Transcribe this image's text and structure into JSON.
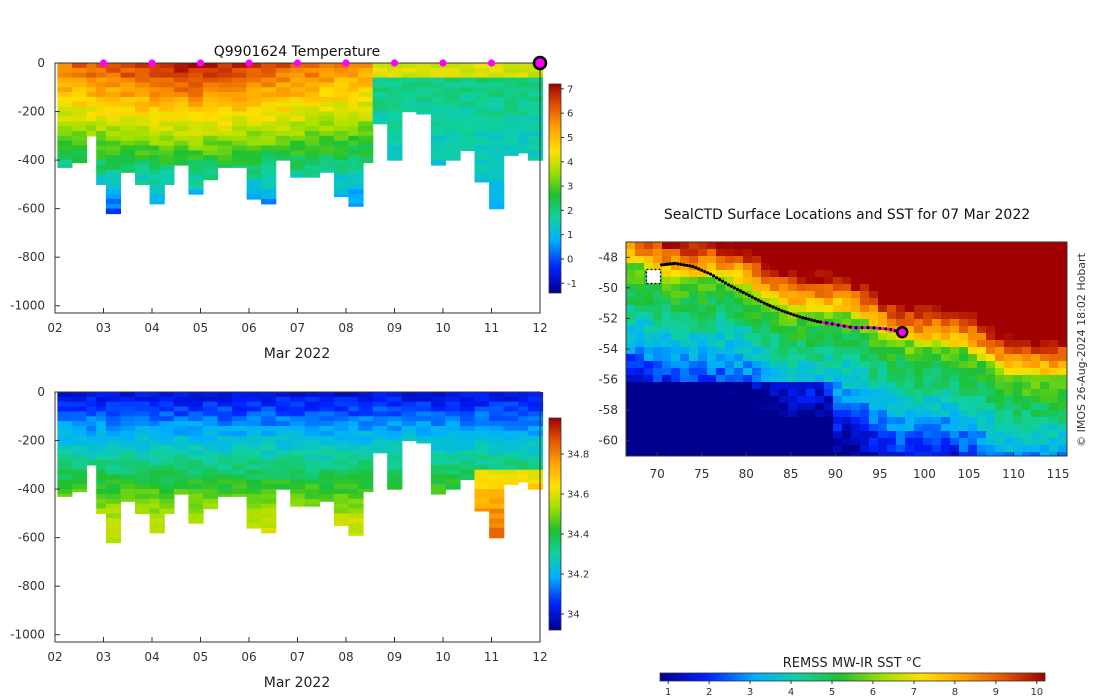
{
  "chart_data": [
    {
      "type": "heatmap",
      "title": "Q9901624  Temperature",
      "xlabel": "Mar 2022",
      "x_ticks": [
        "02",
        "03",
        "04",
        "05",
        "06",
        "07",
        "08",
        "09",
        "10",
        "11",
        "12"
      ],
      "xlim": [
        2,
        12
      ],
      "y_ticks": [
        "0",
        "-200",
        "-400",
        "-600",
        "-800",
        "-1000"
      ],
      "ylim": [
        -1030,
        0
      ],
      "colorbar_ticks": [
        "7",
        "6",
        "5",
        "4",
        "3",
        "2",
        "1",
        "0",
        "-1"
      ],
      "colorbar_range": [
        -1.4,
        7.2
      ],
      "surface_markers_day": [
        3,
        4,
        5,
        6,
        7,
        8,
        9,
        10,
        11
      ],
      "current_marker_day": 12,
      "profiles": [
        {
          "day": 2.2,
          "max_depth": 430
        },
        {
          "day": 2.5,
          "max_depth": 410
        },
        {
          "day": 2.8,
          "max_depth": 300
        },
        {
          "day": 3.0,
          "max_depth": 500
        },
        {
          "day": 3.2,
          "max_depth": 620
        },
        {
          "day": 3.5,
          "max_depth": 450
        },
        {
          "day": 3.8,
          "max_depth": 500
        },
        {
          "day": 4.1,
          "max_depth": 580
        },
        {
          "day": 4.3,
          "max_depth": 500
        },
        {
          "day": 4.6,
          "max_depth": 420
        },
        {
          "day": 4.9,
          "max_depth": 540
        },
        {
          "day": 5.2,
          "max_depth": 480
        },
        {
          "day": 5.5,
          "max_depth": 430
        },
        {
          "day": 5.8,
          "max_depth": 430
        },
        {
          "day": 6.1,
          "max_depth": 560
        },
        {
          "day": 6.4,
          "max_depth": 580
        },
        {
          "day": 6.7,
          "max_depth": 400
        },
        {
          "day": 7.0,
          "max_depth": 470
        },
        {
          "day": 7.3,
          "max_depth": 470
        },
        {
          "day": 7.6,
          "max_depth": 450
        },
        {
          "day": 7.9,
          "max_depth": 550
        },
        {
          "day": 8.2,
          "max_depth": 590
        },
        {
          "day": 8.4,
          "max_depth": 410
        },
        {
          "day": 8.7,
          "max_depth": 250
        },
        {
          "day": 9.0,
          "max_depth": 400
        },
        {
          "day": 9.3,
          "max_depth": 200
        },
        {
          "day": 9.6,
          "max_depth": 210
        },
        {
          "day": 9.9,
          "max_depth": 420
        },
        {
          "day": 10.2,
          "max_depth": 400
        },
        {
          "day": 10.5,
          "max_depth": 360
        },
        {
          "day": 10.8,
          "max_depth": 490
        },
        {
          "day": 11.1,
          "max_depth": 600
        },
        {
          "day": 11.4,
          "max_depth": 380
        },
        {
          "day": 11.7,
          "max_depth": 370
        },
        {
          "day": 11.9,
          "max_depth": 400
        }
      ]
    },
    {
      "type": "heatmap",
      "title": "",
      "xlabel": "Mar 2022",
      "x_ticks": [
        "02",
        "03",
        "04",
        "05",
        "06",
        "07",
        "08",
        "09",
        "10",
        "11",
        "12"
      ],
      "xlim": [
        2,
        12
      ],
      "y_ticks": [
        "0",
        "-200",
        "-400",
        "-600",
        "-800",
        "-1000"
      ],
      "ylim": [
        -1030,
        0
      ],
      "colorbar_ticks": [
        "34.8",
        "34.6",
        "34.4",
        "34.2",
        "34"
      ],
      "colorbar_range": [
        33.92,
        34.98
      ]
    },
    {
      "type": "heatmap",
      "title": "SealCTD Surface Locations and SST for 07 Mar 2022",
      "x_ticks": [
        "70",
        "75",
        "80",
        "85",
        "90",
        "95",
        "100",
        "105",
        "110",
        "115"
      ],
      "xlim": [
        66.5,
        116
      ],
      "y_ticks": [
        "-48",
        "-50",
        "-52",
        "-54",
        "-56",
        "-58",
        "-60"
      ],
      "ylim": [
        -61,
        -47
      ],
      "colorbar_title": "REMSS MW-IR SST °C",
      "colorbar_ticks": [
        "1",
        "2",
        "3",
        "4",
        "5",
        "6",
        "7",
        "8",
        "9",
        "10"
      ],
      "colorbar_range": [
        0.8,
        10.2
      ],
      "track_lon": [
        70.5,
        72,
        74,
        76,
        78,
        80,
        82,
        84,
        86,
        88,
        90,
        92,
        94,
        96,
        97.5
      ],
      "track_lat": [
        -48.5,
        -48.4,
        -48.6,
        -49.1,
        -49.8,
        -50.4,
        -51.0,
        -51.5,
        -51.9,
        -52.2,
        -52.4,
        -52.6,
        -52.6,
        -52.7,
        -52.9
      ],
      "current_position": [
        97.5,
        -52.9
      ],
      "credit": "© IMOS 26-Aug-2024 18:02 Hobart"
    }
  ],
  "colors": {
    "cmap": [
      "#00008f",
      "#0020ff",
      "#00b0ff",
      "#10d0a0",
      "#20c030",
      "#a0e000",
      "#ffe000",
      "#ffa000",
      "#e05000",
      "#a00000"
    ],
    "marker": "#ff00ff",
    "track": "#000000"
  }
}
